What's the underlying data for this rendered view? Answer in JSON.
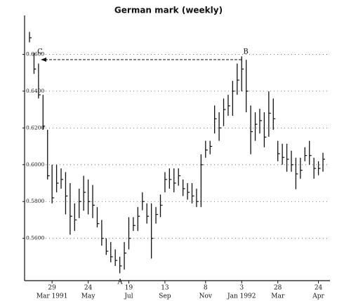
{
  "chart_data": {
    "type": "ohlc",
    "title": "German mark (weekly)",
    "categories": [
      null,
      null,
      null,
      null,
      null,
      "29",
      null,
      null,
      null,
      null,
      null,
      null,
      null,
      "24",
      null,
      null,
      null,
      null,
      null,
      null,
      null,
      null,
      "19",
      null,
      null,
      null,
      null,
      null,
      null,
      null,
      "13",
      null,
      null,
      null,
      null,
      null,
      null,
      null,
      null,
      "8",
      null,
      null,
      null,
      null,
      null,
      null,
      null,
      "3",
      null,
      null,
      null,
      null,
      null,
      null,
      null,
      "28",
      null,
      null,
      null,
      null,
      null,
      null,
      null,
      null,
      "24",
      null
    ],
    "category_months": [
      null,
      null,
      null,
      null,
      null,
      "Mar 1991",
      null,
      null,
      null,
      null,
      null,
      null,
      null,
      "May",
      null,
      null,
      null,
      null,
      null,
      null,
      null,
      null,
      "Jul",
      null,
      null,
      null,
      null,
      null,
      null,
      null,
      "Sep",
      null,
      null,
      null,
      null,
      null,
      null,
      null,
      null,
      "Nov",
      null,
      null,
      null,
      null,
      null,
      null,
      null,
      "Jan 1992",
      null,
      null,
      null,
      null,
      null,
      null,
      null,
      "Mar",
      null,
      null,
      null,
      null,
      null,
      null,
      null,
      null,
      "Apr",
      null
    ],
    "high": [
      0.6722,
      0.6608,
      0.655,
      0.638,
      0.619,
      0.6,
      0.6,
      0.598,
      0.596,
      0.59,
      0.579,
      0.587,
      0.594,
      0.592,
      0.589,
      0.577,
      0.57,
      0.56,
      0.558,
      0.554,
      0.55,
      0.558,
      0.5715,
      0.5715,
      0.577,
      0.585,
      0.579,
      0.579,
      0.577,
      0.5838,
      0.596,
      0.598,
      0.598,
      0.598,
      0.592,
      0.59,
      0.59,
      0.587,
      0.6057,
      0.613,
      0.613,
      0.6322,
      0.6285,
      0.636,
      0.638,
      0.6456,
      0.655,
      0.6589,
      0.657,
      0.6322,
      0.6285,
      0.6304,
      0.6285,
      0.6399,
      0.636,
      0.613,
      0.6114,
      0.6114,
      0.6076,
      0.6038,
      0.6038,
      0.6095,
      0.613,
      0.6038,
      0.6019,
      0.6065
    ],
    "low": [
      0.6665,
      0.6494,
      0.636,
      0.619,
      0.592,
      0.579,
      0.585,
      0.587,
      0.573,
      0.562,
      0.564,
      0.571,
      0.575,
      0.573,
      0.571,
      0.566,
      0.556,
      0.551,
      0.547,
      0.545,
      0.541,
      0.543,
      0.554,
      0.564,
      0.564,
      0.5753,
      0.568,
      0.549,
      0.568,
      0.5715,
      0.585,
      0.587,
      0.585,
      0.5886,
      0.583,
      0.581,
      0.579,
      0.577,
      0.577,
      0.6038,
      0.6057,
      0.617,
      0.613,
      0.621,
      0.6266,
      0.6266,
      0.638,
      0.6399,
      0.6285,
      0.6057,
      0.613,
      0.617,
      0.6095,
      0.6152,
      0.619,
      0.6019,
      0.6,
      0.5962,
      0.5962,
      0.5867,
      0.5924,
      0.6019,
      0.6,
      0.5924,
      0.5943,
      0.5962
    ],
    "close": [
      0.669,
      0.652,
      0.638,
      0.621,
      0.594,
      0.582,
      0.59,
      0.592,
      0.583,
      0.572,
      0.57,
      0.58,
      0.585,
      0.58,
      0.578,
      0.568,
      0.56,
      0.553,
      0.55,
      0.548,
      0.545,
      0.552,
      0.56,
      0.567,
      0.572,
      0.58,
      0.572,
      0.56,
      0.573,
      0.578,
      0.592,
      0.592,
      0.59,
      0.594,
      0.587,
      0.585,
      0.583,
      0.58,
      0.6,
      0.608,
      0.61,
      0.625,
      0.62,
      0.63,
      0.632,
      0.64,
      0.646,
      0.652,
      0.64,
      0.618,
      0.622,
      0.624,
      0.615,
      0.628,
      0.625,
      0.606,
      0.604,
      0.603,
      0.6,
      0.595,
      0.597,
      0.605,
      0.605,
      0.598,
      0.598,
      0.603
    ],
    "color": "#111111",
    "ylim": [
      0.537,
      0.68
    ],
    "yticks": [
      {
        "value": 0.56,
        "label": "0.5600"
      },
      {
        "value": 0.58,
        "label": "0.5800"
      },
      {
        "value": 0.6,
        "label": "0.6000"
      },
      {
        "value": 0.62,
        "label": "0.6200"
      },
      {
        "value": 0.64,
        "label": "0.6400"
      },
      {
        "value": 0.66,
        "label": "0.6600"
      }
    ],
    "grid": true,
    "annotations": [
      "A",
      "B",
      "C"
    ]
  }
}
